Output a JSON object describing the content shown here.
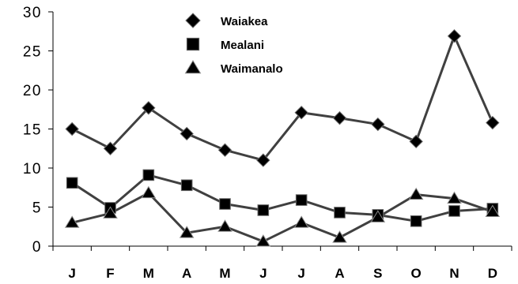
{
  "chart_data": {
    "type": "line",
    "title": "",
    "xlabel": "",
    "ylabel": "",
    "categories": [
      "J",
      "F",
      "M",
      "A",
      "M",
      "J",
      "J",
      "A",
      "S",
      "O",
      "N",
      "D"
    ],
    "ylim": [
      0,
      30
    ],
    "yticks": [
      "0",
      "5",
      "10",
      "15",
      "20",
      "25",
      "30"
    ],
    "grid": false,
    "legend_position": "top-center",
    "series": [
      {
        "name": "Waiakea",
        "marker": "diamond",
        "color": "#404040",
        "values": [
          15,
          12.5,
          17.7,
          14.4,
          12.3,
          11,
          17.1,
          16.4,
          15.6,
          13.4,
          26.9,
          15.8
        ]
      },
      {
        "name": "Mealani",
        "marker": "square",
        "color": "#404040",
        "values": [
          8.1,
          4.9,
          9.1,
          7.8,
          5.4,
          4.6,
          5.9,
          4.3,
          4,
          3.2,
          4.5,
          4.8
        ]
      },
      {
        "name": "Waimanalo",
        "marker": "triangle",
        "color": "#404040",
        "values": [
          3,
          4.2,
          6.8,
          1.7,
          2.5,
          0.6,
          3,
          1.1,
          3.7,
          6.6,
          6.1,
          4.4
        ]
      }
    ]
  }
}
